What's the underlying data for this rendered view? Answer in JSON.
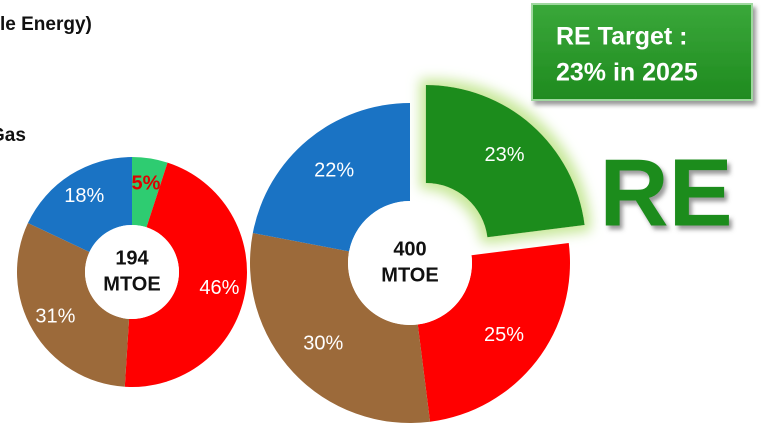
{
  "texts": {
    "heading_fragment": "le Energy)",
    "legend_fragment": "Gas",
    "callout": [
      "RE Target :",
      "23% in 2025"
    ],
    "badge": "RE"
  },
  "chart_data": [
    {
      "type": "donut",
      "center_label": [
        "194",
        "MTOE"
      ],
      "values": [
        5,
        46,
        31,
        18
      ],
      "value_labels": [
        "5%",
        "46%",
        "31%",
        "18%"
      ],
      "colors": [
        "#2ecc71",
        "#ff0000",
        "#9c6a3a",
        "#1a73c4"
      ],
      "label_colors": [
        "#e00000",
        "#ffffff",
        "#ffffff",
        "#ffffff"
      ],
      "explode": [
        false,
        false,
        false,
        false
      ]
    },
    {
      "type": "donut",
      "center_label": [
        "400",
        "MTOE"
      ],
      "values": [
        23,
        25,
        30,
        22
      ],
      "value_labels": [
        "23%",
        "25%",
        "30%",
        "22%"
      ],
      "colors": [
        "#1e8c1e",
        "#ff0000",
        "#9c6a3a",
        "#1a73c4"
      ],
      "label_colors": [
        "#ffffff",
        "#ffffff",
        "#ffffff",
        "#ffffff"
      ],
      "explode": [
        true,
        false,
        false,
        false
      ]
    }
  ]
}
